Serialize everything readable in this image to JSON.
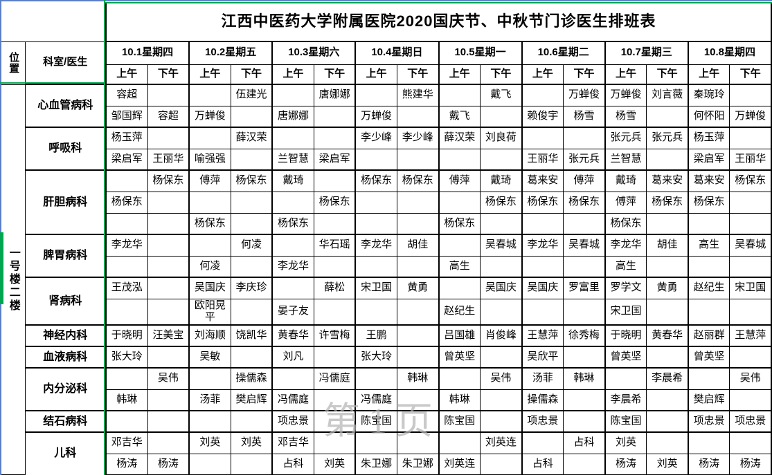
{
  "title": "江西中医药大学附属医院2020国庆节、中秋节门诊医生排班表",
  "header": {
    "position_label": "位置",
    "dept_label": "科室/医生",
    "am_label": "上午",
    "pm_label": "下午",
    "days": [
      "10.1星期四",
      "10.2星期五",
      "10.3星期六",
      "10.4星期日",
      "10.5星期一",
      "10.6星期二",
      "10.7星期三",
      "10.8星期四"
    ]
  },
  "location_label": "一号楼二楼",
  "watermark_text": "第1页",
  "colors": {
    "freeze_line_green": "#00A64F",
    "window_edge_blue": "#5B7EC9",
    "watermark_gray": "#B3B3B3",
    "grid_black": "#000000"
  },
  "departments": [
    {
      "name": "心血管病科",
      "rows": [
        [
          "容超",
          "",
          "",
          "伍建光",
          "",
          "唐娜娜",
          "",
          "熊建华",
          "",
          "戴飞",
          "",
          "万蝉俊",
          "万蝉俊",
          "刘言薇",
          "秦琬玲",
          ""
        ],
        [
          "邹国辉",
          "容超",
          "万蝉俊",
          "",
          "唐娜娜",
          "",
          "万蝉俊",
          "",
          "戴飞",
          "",
          "赖俊宇",
          "杨雪",
          "杨雪",
          "",
          "何怀阳",
          "万蝉俊"
        ]
      ]
    },
    {
      "name": "呼吸科",
      "rows": [
        [
          "杨玉萍",
          "",
          "",
          "薛汉荣",
          "",
          "",
          "李少峰",
          "李少峰",
          "薛汉荣",
          "刘良荷",
          "",
          "",
          "张元兵",
          "张元兵",
          "杨玉萍",
          ""
        ],
        [
          "梁启军",
          "王丽华",
          "喻强强",
          "",
          "兰智慧",
          "梁启军",
          "",
          "",
          "",
          "",
          "王丽华",
          "张元兵",
          "兰智慧",
          "",
          "梁启军",
          "王丽华"
        ]
      ]
    },
    {
      "name": "肝胆病科",
      "rows": [
        [
          "",
          "杨保东",
          "傅萍",
          "杨保东",
          "戴琦",
          "",
          "杨保东",
          "杨保东",
          "傅萍",
          "戴琦",
          "葛来安",
          "傅萍",
          "戴琦",
          "葛来安",
          "葛来安",
          "杨保东"
        ],
        [
          "杨保东",
          "",
          "",
          "",
          "",
          "杨保东",
          "",
          "",
          "",
          "杨保东",
          "杨保东",
          "杨保东",
          "傅萍",
          "杨保东",
          "杨保东",
          ""
        ],
        [
          "",
          "",
          "杨保东",
          "",
          "杨保东",
          "",
          "",
          "",
          "杨保东",
          "",
          "",
          "",
          "杨保东",
          "",
          "",
          ""
        ]
      ]
    },
    {
      "name": "脾胃病科",
      "rows": [
        [
          "李龙华",
          "",
          "",
          "何凌",
          "",
          "华石瑶",
          "李龙华",
          "胡佳",
          "",
          "吴春城",
          "李龙华",
          "吴春城",
          "李龙华",
          "胡佳",
          "高生",
          "吴春城"
        ],
        [
          "",
          "",
          "何凌",
          "",
          "李龙华",
          "",
          "",
          "",
          "高生",
          "",
          "",
          "",
          "高生",
          "",
          "",
          ""
        ]
      ]
    },
    {
      "name": "肾病科",
      "rows": [
        [
          "王茂泓",
          "",
          "吴国庆",
          "李庆珍",
          "",
          "薛松",
          "宋卫国",
          "黄勇",
          "",
          "吴国庆",
          "吴国庆",
          "罗富里",
          "罗学文",
          "黄勇",
          "赵纪生",
          "宋卫国"
        ],
        [
          "",
          "",
          "欧阳晃平",
          "",
          "晏子友",
          "",
          "",
          "",
          "赵纪生",
          "",
          "",
          "",
          "宋卫国",
          "",
          "",
          ""
        ]
      ]
    },
    {
      "name": "神经内科",
      "rows": [
        [
          "于晓明",
          "汪美宝",
          "刘海顺",
          "饶凯华",
          "黄春华",
          "许雪梅",
          "王鹏",
          "",
          "吕国雄",
          "肖俊峰",
          "王慧萍",
          "徐秀梅",
          "于晓明",
          "黄春华",
          "赵丽群",
          "王慧萍"
        ]
      ]
    },
    {
      "name": "血液病科",
      "rows": [
        [
          "张大玲",
          "",
          "吴敏",
          "",
          "刘凡",
          "",
          "张大玲",
          "",
          "曾英坚",
          "",
          "吴欣平",
          "",
          "曾英坚",
          "",
          "曾英坚",
          ""
        ]
      ]
    },
    {
      "name": "内分泌科",
      "rows": [
        [
          "",
          "吴伟",
          "",
          "操儒森",
          "",
          "冯儒庭",
          "",
          "韩琳",
          "",
          "吴伟",
          "汤菲",
          "韩琳",
          "",
          "李晨希",
          "",
          "吴伟"
        ],
        [
          "韩琳",
          "",
          "汤菲",
          "樊启辉",
          "冯儒庭",
          "",
          "冯儒庭",
          "",
          "韩琳",
          "",
          "操儒森",
          "",
          "李晨希",
          "",
          "樊启辉",
          ""
        ]
      ]
    },
    {
      "name": "结石病科",
      "rows": [
        [
          "",
          "",
          "",
          "",
          "项忠景",
          "",
          "陈宝国",
          "",
          "陈宝国",
          "",
          "项忠景",
          "",
          "陈宝国",
          "",
          "项忠景",
          "项忠景"
        ]
      ]
    },
    {
      "name": "儿科",
      "rows": [
        [
          "邓吉华",
          "",
          "刘英",
          "刘英",
          "邓吉华",
          "",
          "",
          "",
          "",
          "刘英连",
          "",
          "占科",
          "刘英",
          "",
          "",
          ""
        ],
        [
          "杨涛",
          "杨涛",
          "",
          "",
          "占科",
          "刘英",
          "朱卫娜",
          "朱卫娜",
          "刘英连",
          "",
          "占科",
          "",
          "杨涛",
          "刘英",
          "杨涛",
          "杨涛"
        ]
      ]
    }
  ]
}
